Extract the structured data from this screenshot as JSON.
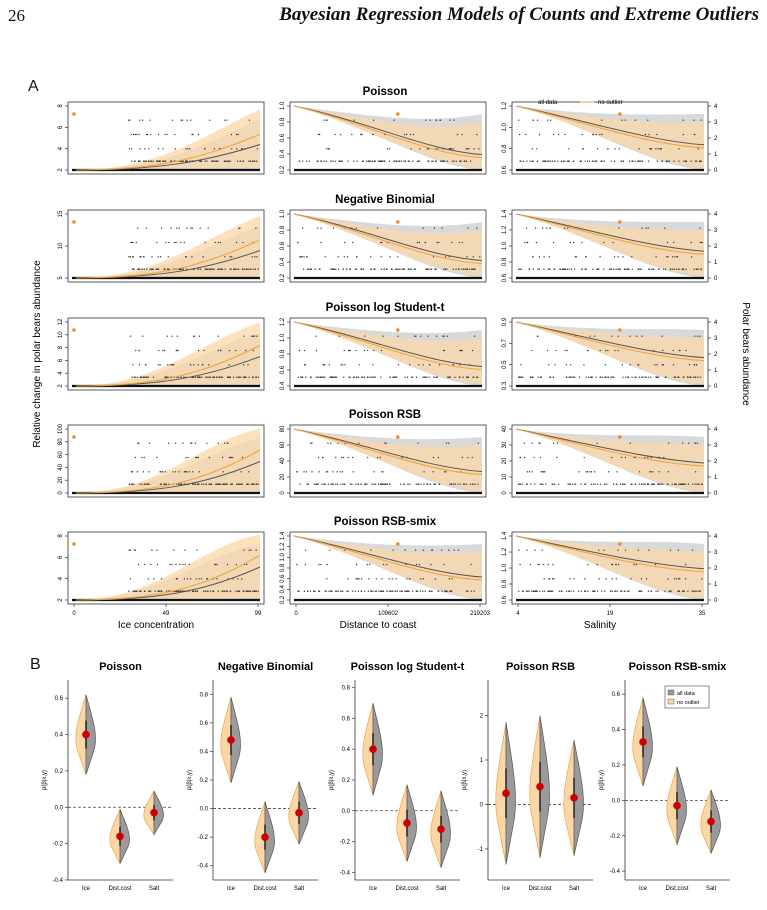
{
  "header": {
    "page_number": "26",
    "running_title": "Bayesian Regression Models of Counts and Extreme Outliers"
  },
  "colors": {
    "all_data": "#8c8c8c",
    "all_data_band": "#cfcfcf",
    "no_outlier": "#f0a53c",
    "no_outlier_band": "#fbd7a8",
    "outlier_point": "#f08a24",
    "posterior_mean": "#cc0000"
  },
  "panel_a": {
    "label": "A",
    "y_label_left": "Relative change in polar bears abundance",
    "y_label_right": "Polar bears abundance",
    "legend": [
      "all data",
      "no outlier"
    ],
    "x_axes": [
      {
        "label": "Ice concentration",
        "ticks": [
          "0",
          "49",
          "99"
        ]
      },
      {
        "label": "Distance to coast",
        "ticks": [
          "0",
          "109602",
          "219203"
        ]
      },
      {
        "label": "Salinity",
        "ticks": [
          "4",
          "19",
          "35"
        ]
      }
    ],
    "right_ticks": [
      "0",
      "1",
      "2",
      "3",
      "4"
    ],
    "rows": [
      {
        "title": "Poisson",
        "y_ticks": [
          [
            "2",
            "4",
            "6",
            "8"
          ],
          [
            "0.2",
            "0.4",
            "0.6",
            "0.8",
            "1.0"
          ],
          [
            "0.6",
            "0.8",
            "1.0",
            "1.2"
          ]
        ]
      },
      {
        "title": "Negative Binomial",
        "y_ticks": [
          [
            "5",
            "10",
            "15"
          ],
          [
            "0.2",
            "0.4",
            "0.6",
            "0.8",
            "1.0"
          ],
          [
            "0.6",
            "0.8",
            "1.0",
            "1.2",
            "1.4"
          ]
        ]
      },
      {
        "title": "Poisson log Student-t",
        "y_ticks": [
          [
            "2",
            "4",
            "6",
            "8",
            "10",
            "12"
          ],
          [
            "0.4",
            "0.6",
            "0.8",
            "1.0",
            "1.2"
          ],
          [
            "0.3",
            "0.5",
            "0.7",
            "0.9"
          ]
        ]
      },
      {
        "title": "Poisson RSB",
        "y_ticks": [
          [
            "0",
            "20",
            "40",
            "60",
            "80",
            "100"
          ],
          [
            "0",
            "20",
            "40",
            "60",
            "80"
          ],
          [
            "0",
            "10",
            "20",
            "30",
            "40"
          ]
        ]
      },
      {
        "title": "Poisson RSB-smix",
        "y_ticks": [
          [
            "2",
            "4",
            "6",
            "8"
          ],
          [
            "0.2",
            "0.4",
            "0.6",
            "0.8",
            "1.0",
            "1.2",
            "1.4"
          ],
          [
            "0.6",
            "0.8",
            "1.0",
            "1.2",
            "1.4"
          ]
        ]
      }
    ]
  },
  "panel_b": {
    "label": "B",
    "y_label": "p(β|x,y)",
    "categories": [
      "Ice",
      "Dist.cost",
      "Salt"
    ],
    "legend": [
      "all data",
      "no outlier"
    ],
    "plots": [
      {
        "title": "Poisson",
        "ylim": [
          -0.4,
          0.7
        ],
        "ticks": [
          "-0.4",
          "-0.2",
          "0.0",
          "0.2",
          "0.4",
          "0.6"
        ],
        "means": [
          0.4,
          -0.16,
          -0.03
        ],
        "spread": [
          0.22,
          0.15,
          0.12
        ]
      },
      {
        "title": "Negative Binomial",
        "ylim": [
          -0.5,
          0.9
        ],
        "ticks": [
          "-0.4",
          "-0.2",
          "0.0",
          "0.2",
          "0.4",
          "0.6",
          "0.8"
        ],
        "means": [
          0.48,
          -0.2,
          -0.03
        ],
        "spread": [
          0.3,
          0.25,
          0.22
        ]
      },
      {
        "title": "Poisson log Student-t",
        "ylim": [
          -0.45,
          0.85
        ],
        "ticks": [
          "-0.4",
          "-0.2",
          "0.0",
          "0.2",
          "0.4",
          "0.6",
          "0.8"
        ],
        "means": [
          0.4,
          -0.08,
          -0.12
        ],
        "spread": [
          0.3,
          0.25,
          0.25
        ]
      },
      {
        "title": "Poisson RSB",
        "ylim": [
          -1.7,
          2.8
        ],
        "ticks": [
          "-1",
          "0",
          "1",
          "2"
        ],
        "means": [
          0.25,
          0.4,
          0.15
        ],
        "spread": [
          1.6,
          1.6,
          1.3
        ]
      },
      {
        "title": "Poisson RSB-smix",
        "ylim": [
          -0.45,
          0.68
        ],
        "ticks": [
          "-0.4",
          "-0.2",
          "0.0",
          "0.2",
          "0.4",
          "0.6"
        ],
        "means": [
          0.33,
          -0.03,
          -0.12
        ],
        "spread": [
          0.25,
          0.22,
          0.18
        ]
      }
    ]
  }
}
